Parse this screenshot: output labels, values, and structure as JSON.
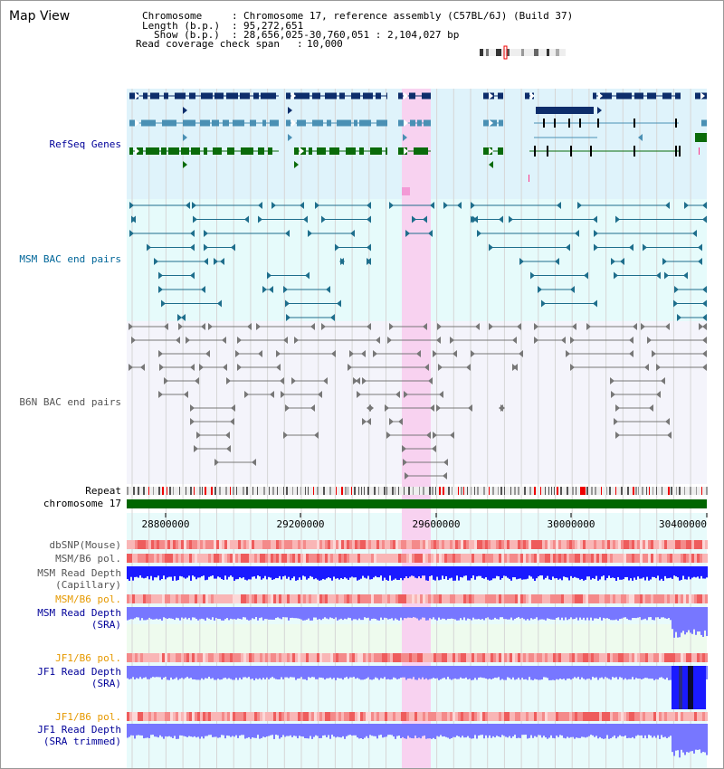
{
  "view": {
    "title": "Map View",
    "chromosome_key": "Chromosome",
    "chromosome_value": "Chromosome 17, reference assembly (C57BL/6J) (Build 37)",
    "length_key": "Length (b.p.)",
    "length_value": "95,272,651",
    "show_key": "Show (b.p.)",
    "show_value": "28,656,025-30,760,051 : 2,104,027 bp",
    "coverage_key": "Read coverage check span",
    "coverage_value": "10,000"
  },
  "tracks": {
    "refseq": "RefSeq Genes",
    "msm_bac": "MSM BAC end pairs",
    "b6n_bac": "B6N BAC end pairs",
    "repeat": "Repeat",
    "chromosome": "chromosome 17",
    "dbsnp": "dbSNP(Mouse)",
    "msm_b6_pol_1": "MSM/B6 pol.",
    "msm_depth_cap_1": "MSM Read Depth",
    "msm_depth_cap_2": "(Capillary)",
    "msm_b6_pol_2": "MSM/B6 pol.",
    "msm_depth_sra_1": "MSM Read Depth",
    "msm_depth_sra_2": "(SRA)",
    "jf1_b6_pol_1": "JF1/B6 pol.",
    "jf1_depth_sra_1": "JF1 Read Depth",
    "jf1_depth_sra_2": "(SRA)",
    "jf1_b6_pol_2": "JF1/B6 pol.",
    "jf1_depth_trim_1": "JF1 Read Depth",
    "jf1_depth_trim_2": "(SRA trimmed)"
  },
  "axis": {
    "ticks": [
      "28800000",
      "29200000",
      "29600000",
      "30000000",
      "30400000"
    ],
    "range_bp": [
      28656025,
      30760051
    ]
  },
  "colors": {
    "refseq_bg": "#dff3fb",
    "msm_bg": "#e6fbfb",
    "b6n_bg": "#f4f4fb",
    "highlight": "#f8d2f0",
    "refseq_navy": "#0d2d6b",
    "refseq_teal": "#4a90b4",
    "refseq_green": "#0a6b0a",
    "msm_teal": "#1e6e8c",
    "b6n_gray": "#777777",
    "chromosome_green": "#006600",
    "depth_blue": "#1a1aff",
    "depth_light": "#7777ff",
    "pol_red": "#f06060",
    "label_navy": "#000099",
    "label_teal": "#006699",
    "label_gray": "#555555",
    "label_orange": "#e69900"
  }
}
